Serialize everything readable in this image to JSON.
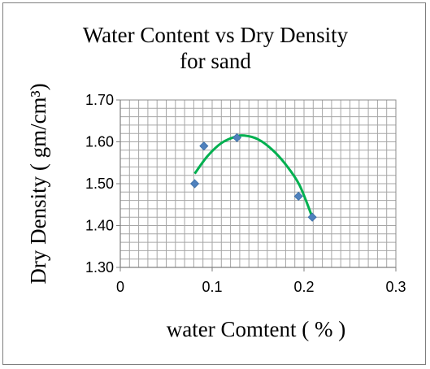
{
  "chart_data": {
    "type": "scatter",
    "title_line1": "Water Content vs Dry Density",
    "title_line2": "for sand",
    "xlabel": "water Comtent ( % )",
    "ylabel": "Dry Density ( gm/cm³)",
    "xlim": [
      0,
      0.3
    ],
    "ylim": [
      1.3,
      1.7
    ],
    "x_ticks": [
      "0",
      "0.1",
      "0.2",
      "0.3"
    ],
    "y_ticks": [
      "1.30",
      "1.40",
      "1.50",
      "1.60",
      "1.70"
    ],
    "grid": true,
    "legend": "none",
    "series": [
      {
        "x": [
          0.081,
          0.091,
          0.127,
          0.194,
          0.209
        ],
        "y": [
          1.5,
          1.59,
          1.61,
          1.47,
          1.42
        ],
        "marker": "diamond",
        "color": "#4f81bd"
      }
    ],
    "trendline": {
      "type": "polynomial-2",
      "color": "#00b050",
      "x_range": [
        0.081,
        0.209
      ],
      "points": {
        "x": [
          0.081,
          0.095,
          0.11,
          0.125,
          0.135,
          0.15,
          0.165,
          0.18,
          0.195,
          0.209
        ],
        "y": [
          1.524,
          1.566,
          1.597,
          1.612,
          1.615,
          1.606,
          1.582,
          1.546,
          1.497,
          1.42
        ]
      }
    }
  }
}
